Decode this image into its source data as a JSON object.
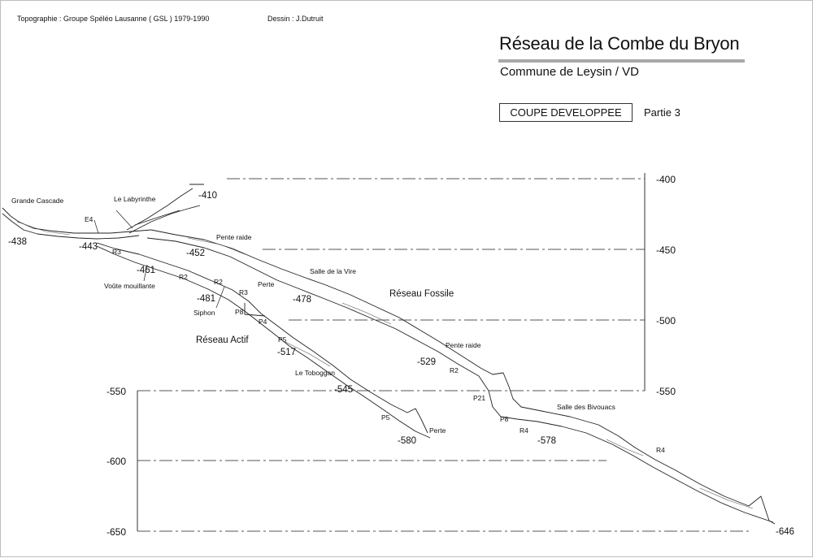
{
  "header": {
    "topography_credit": "Topographie  :  Groupe Spéléo Lausanne  ( GSL )   1979-1990",
    "drawing_credit": "Dessin  :  J.Dutruit"
  },
  "title": "Réseau de la Combe du Bryon",
  "subtitle": "Commune de Leysin / VD",
  "section_label": "COUPE DEVELOPPEE",
  "section_part": "Partie 3",
  "depth_scale_right": [
    "-400",
    "-450",
    "-500",
    "-550"
  ],
  "depth_scale_left": [
    "-550",
    "-600",
    "-650"
  ],
  "cave_labels": {
    "grande_cascade": "Grande Cascade",
    "labyrinthe": "Le Labyrinthe",
    "e4": "E4",
    "pente_raide_upper": "Pente raide",
    "salle_vire": "Salle de la Vire",
    "perte_upper": "Perte",
    "reseau_fossile": "Réseau Fossile",
    "pente_raide_lower": "Pente raide",
    "r3_a": "R3",
    "voute_mouillante": "Voûte mouillante",
    "r2_a": "R2",
    "r2_b": "R2",
    "r3_b": "R3",
    "siphon": "Siphon",
    "p8_a": "P8",
    "p4": "P4",
    "reseau_actif": "Réseau Actif",
    "p5_a": "P5",
    "le_toboggan": "Le Toboggan",
    "p5_b": "P5",
    "perte_lower": "Perte",
    "r2_c": "R2",
    "p21": "P21",
    "p8_b": "P8",
    "r4_a": "R4",
    "salle_bivouacs": "Salle des Bivouacs",
    "r4_b": "R4"
  },
  "depth_labels": {
    "d410": "-410",
    "d438": "-438",
    "d443": "-443",
    "d452": "-452",
    "d461": "-461",
    "d478": "-478",
    "d481": "-481",
    "d517": "-517",
    "d529": "-529",
    "d545": "-545",
    "d578": "-578",
    "d580": "-580",
    "d646": "-646"
  }
}
